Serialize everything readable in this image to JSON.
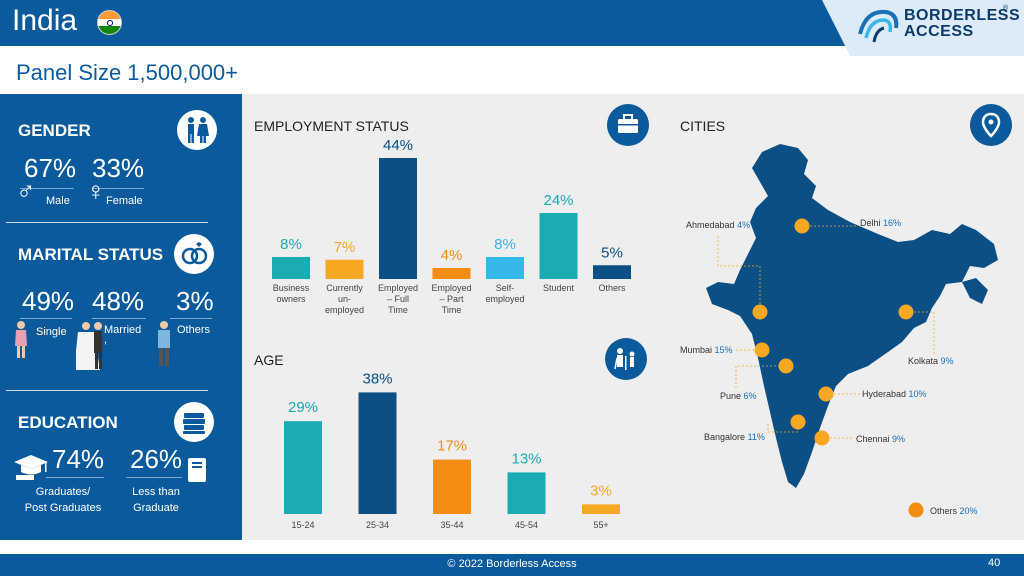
{
  "header": {
    "title": "India",
    "logo_line1": "BORDERLESS",
    "logo_line2": "ACCESS",
    "logo_reg": "®"
  },
  "panel_size": "Panel Size 1,500,000+",
  "gender": {
    "title": "GENDER",
    "male_pct": "67%",
    "female_pct": "33%",
    "male_label": "Male",
    "female_label": "Female",
    "male_symbol": "♂",
    "female_symbol": "♀"
  },
  "marital": {
    "title": "MARITAL STATUS",
    "single_pct": "49%",
    "married_pct": "48%",
    "others_pct": "3%",
    "single_label": "Single",
    "married_label": "Married",
    "others_label": "Others",
    "married_extra": ","
  },
  "education": {
    "title": "EDUCATION",
    "grad_pct": "74%",
    "less_pct": "26%",
    "grad_label_1": "Graduates/",
    "grad_label_2": "Post Graduates",
    "less_label_1": "Less than",
    "less_label_2": "Graduate"
  },
  "employment": {
    "title": "EMPLOYMENT STATUS",
    "bars": [
      {
        "value": 8,
        "label_text": "8%",
        "cat": [
          "Business",
          "owners"
        ],
        "color": "#1aabb3"
      },
      {
        "value": 7,
        "label_text": "7%",
        "cat": [
          "Currently",
          "un-",
          "employed"
        ],
        "color": "#f7a823"
      },
      {
        "value": 44,
        "label_text": "44%",
        "cat": [
          "Employed",
          "– Full",
          "Time"
        ],
        "color": "#0b4f84"
      },
      {
        "value": 4,
        "label_text": "4%",
        "cat": [
          "Employed",
          "– Part",
          "Time"
        ],
        "color": "#f28c13"
      },
      {
        "value": 8,
        "label_text": "8%",
        "cat": [
          "Self-",
          "employed"
        ],
        "color": "#35b7e8"
      },
      {
        "value": 24,
        "label_text": "24%",
        "cat": [
          "Student"
        ],
        "color": "#1aabb3"
      },
      {
        "value": 5,
        "label_text": "5%",
        "cat": [
          "Others"
        ],
        "color": "#0b4f84"
      }
    ]
  },
  "age": {
    "title": "AGE",
    "bars": [
      {
        "value": 29,
        "label_text": "29%",
        "cat": "15-24",
        "color": "#1aabb3"
      },
      {
        "value": 38,
        "label_text": "38%",
        "cat": "25-34",
        "color": "#0b4f84"
      },
      {
        "value": 17,
        "label_text": "17%",
        "cat": "35-44",
        "color": "#f28c13"
      },
      {
        "value": 13,
        "label_text": "13%",
        "cat": "45-54",
        "color": "#1aabb3"
      },
      {
        "value": 3,
        "label_text": "3%",
        "cat": "55+",
        "color": "#f7a823"
      }
    ]
  },
  "cities": {
    "title": "CITIES",
    "list": [
      {
        "name": "Ahmedabad",
        "pct": "4%"
      },
      {
        "name": "Delhi",
        "pct": "16%"
      },
      {
        "name": "Mumbai",
        "pct": "15%"
      },
      {
        "name": "Kolkata",
        "pct": "9%"
      },
      {
        "name": "Pune",
        "pct": "6%"
      },
      {
        "name": "Hyderabad",
        "pct": "10%"
      },
      {
        "name": "Bangalore",
        "pct": "11%"
      },
      {
        "name": "Chennai",
        "pct": "9%"
      }
    ],
    "others_name": "Others",
    "others_pct": "20%"
  },
  "colors": {
    "primary": "#0b5a9c",
    "teal": "#1aabb3",
    "orange": "#f28c13",
    "yellow": "#f7a823",
    "light_blue": "#35b7e8",
    "dark_blue": "#0b4f84"
  },
  "footer": {
    "copyright": "© 2022 Borderless Access",
    "page": "40"
  }
}
